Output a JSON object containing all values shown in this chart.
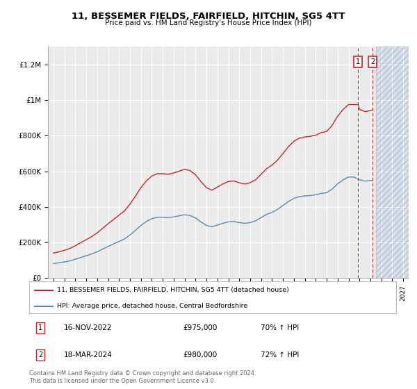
{
  "title": "11, BESSEMER FIELDS, FAIRFIELD, HITCHIN, SG5 4TT",
  "subtitle": "Price paid vs. HM Land Registry's House Price Index (HPI)",
  "ylim": [
    0,
    1300000
  ],
  "yticks": [
    0,
    200000,
    400000,
    600000,
    800000,
    1000000,
    1200000
  ],
  "ytick_labels": [
    "£0",
    "£200K",
    "£400K",
    "£600K",
    "£800K",
    "£1M",
    "£1.2M"
  ],
  "background_color": "#ffffff",
  "plot_bg_color": "#ebebeb",
  "grid_color": "#ffffff",
  "hpi_color": "#5588bb",
  "price_color": "#cc2222",
  "sale1_x": 2022.88,
  "sale2_x": 2024.21,
  "sale1_label": "1",
  "sale2_label": "2",
  "sale1_date": "16-NOV-2022",
  "sale1_price": "£975,000",
  "sale1_hpi": "70% ↑ HPI",
  "sale2_date": "18-MAR-2024",
  "sale2_price": "£980,000",
  "sale2_hpi": "72% ↑ HPI",
  "legend_label1": "11, BESSEMER FIELDS, FAIRFIELD, HITCHIN, SG5 4TT (detached house)",
  "legend_label2": "HPI: Average price, detached house, Central Bedfordshire",
  "footer": "Contains HM Land Registry data © Crown copyright and database right 2024.\nThis data is licensed under the Open Government Licence v3.0.",
  "xmin": 1994.5,
  "xmax": 2027.5,
  "future_shade_start": 2024.5
}
